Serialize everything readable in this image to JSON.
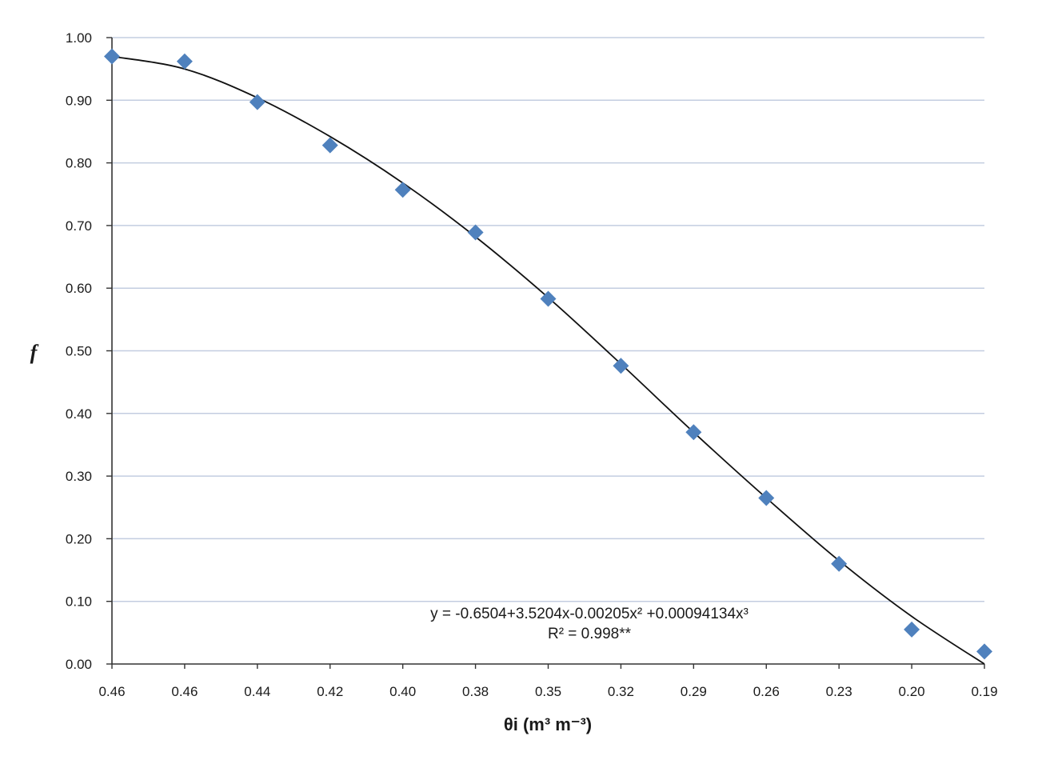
{
  "chart_data": {
    "type": "scatter",
    "xlabel": "θi (m³ m⁻³)",
    "ylabel": "f",
    "ylim": [
      0,
      1
    ],
    "y_ticks": [
      "0.00",
      "0.10",
      "0.20",
      "0.30",
      "0.40",
      "0.50",
      "0.60",
      "0.70",
      "0.80",
      "0.90",
      "1.00"
    ],
    "x_tick_labels": [
      "0.46",
      "0.46",
      "0.44",
      "0.42",
      "0.40",
      "0.38",
      "0.35",
      "0.32",
      "0.29",
      "0.26",
      "0.23",
      "0.20",
      "0.19"
    ],
    "grid": "horizontal",
    "marker_color": "#4f81bd",
    "fit_line_color": "#111111",
    "series": [
      {
        "marker": "diamond",
        "values": [
          0.97,
          0.962,
          0.897,
          0.828,
          0.757,
          0.689,
          0.583,
          0.476,
          0.37,
          0.265,
          0.16,
          0.055,
          0.02
        ]
      }
    ],
    "trendline": {
      "type": "polynomial",
      "values": [
        0.97,
        0.95,
        0.904,
        0.842,
        0.768,
        0.682,
        0.585,
        0.479,
        0.37,
        0.265,
        0.165,
        0.076,
        0.0
      ]
    },
    "annotations": {
      "equation": "y = -0.6504+3.5204x-0.00205x² +0.00094134x³",
      "r_squared": "R² = 0.998**"
    }
  }
}
